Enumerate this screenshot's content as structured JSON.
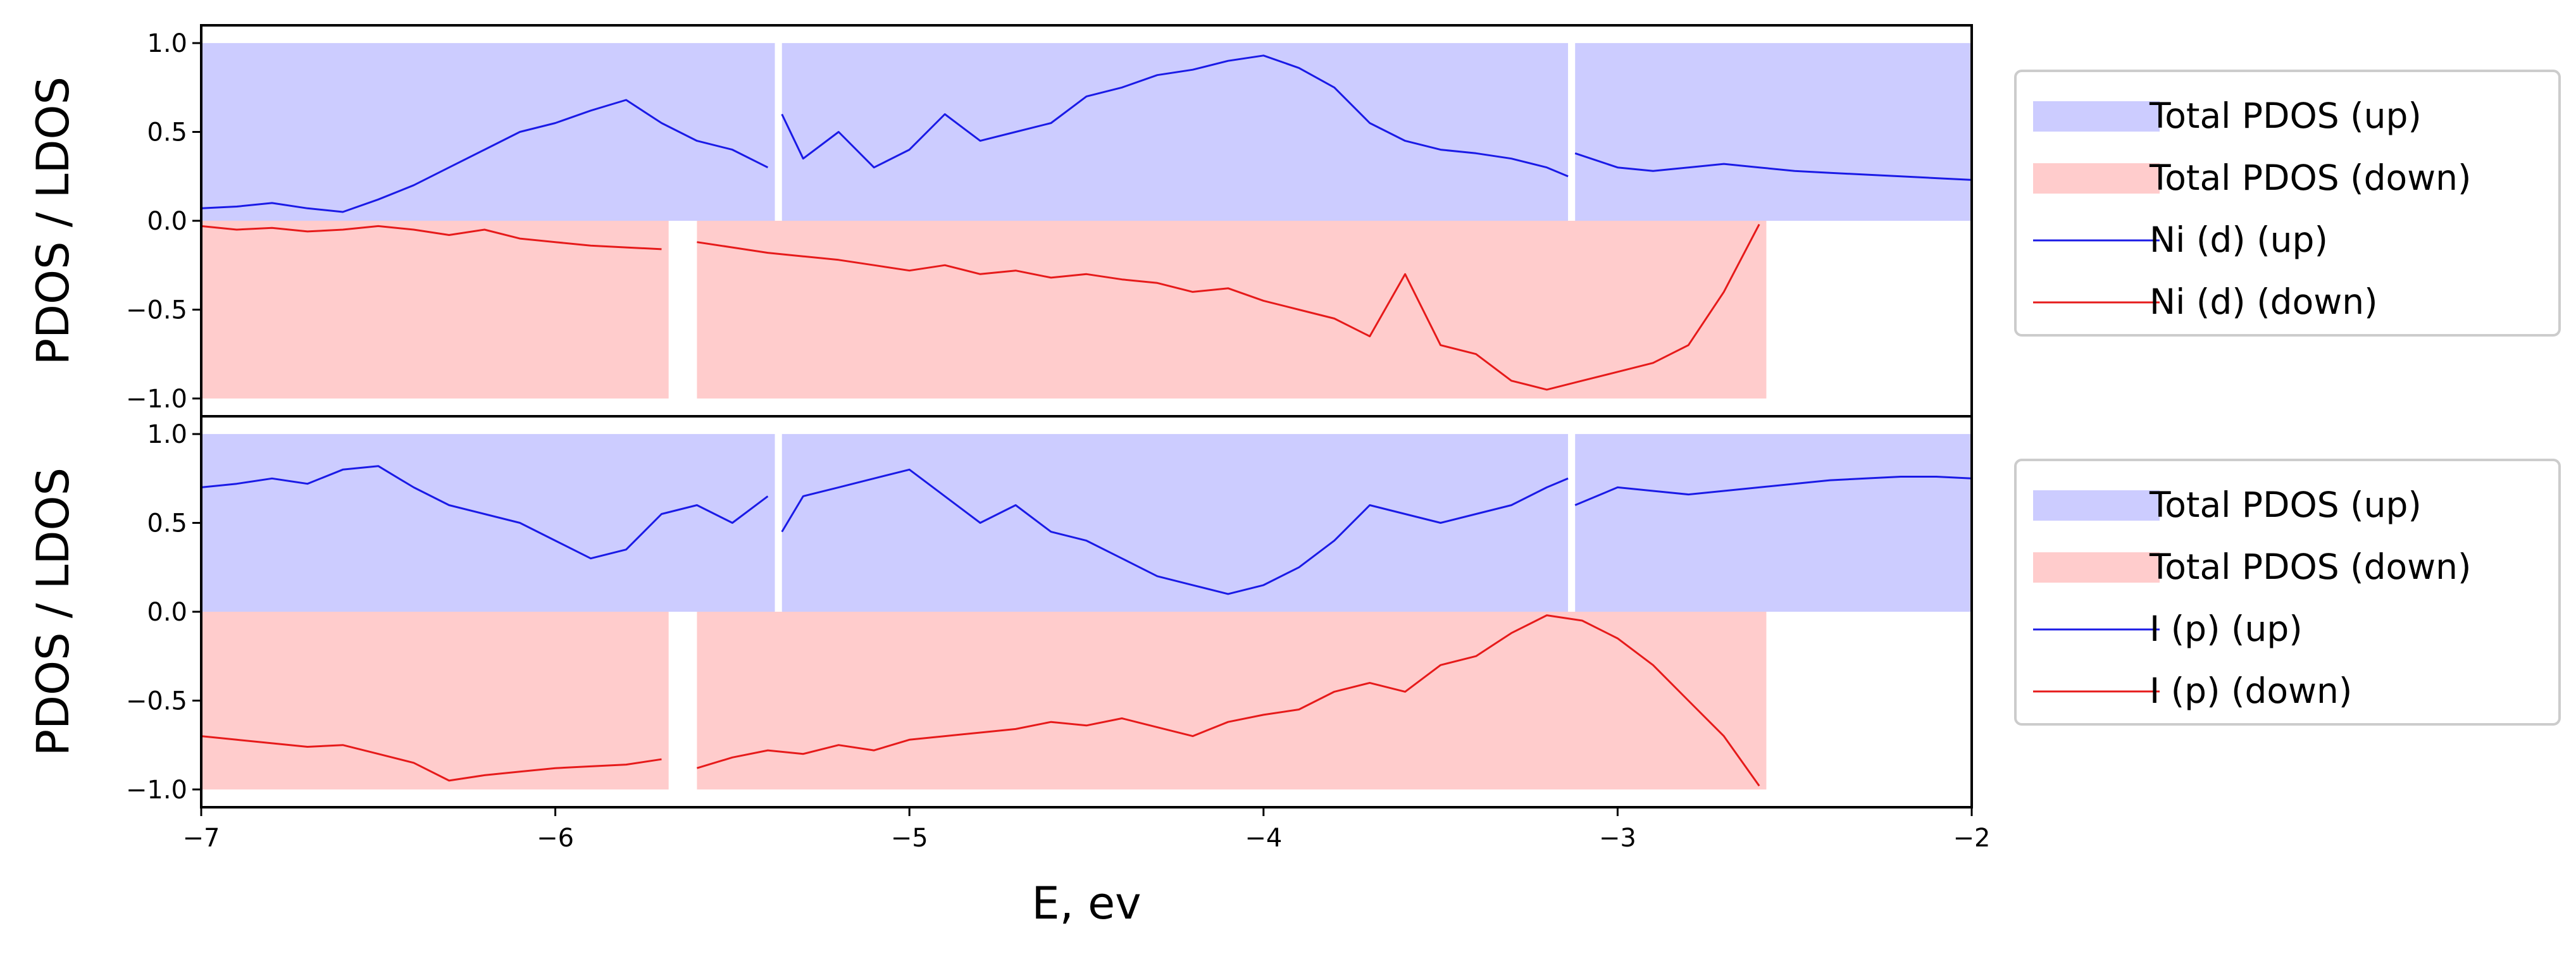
{
  "colors": {
    "up_fill": "#ccccff",
    "down_fill": "#ffcccc",
    "up_line": "#1a1ae6",
    "down_line": "#e61a1a",
    "frame": "#000000",
    "legend_border": "#cccccc"
  },
  "chart_data": [
    {
      "type": "area",
      "title": "",
      "xlabel": "",
      "ylabel": "PDOS / LDOS",
      "xlim": [
        -7,
        -2
      ],
      "ylim": [
        -1.1,
        1.1
      ],
      "yticks": [
        -1.0,
        -0.5,
        0.0,
        0.5,
        1.0
      ],
      "ytick_labels": [
        "−1.0",
        "−0.5",
        "0.0",
        "0.5",
        "1.0"
      ],
      "grid": false,
      "legend_position": "outside-right",
      "legend": [
        "Total PDOS (up)",
        "Total PDOS (down)",
        "Ni (d) (up)",
        "Ni (d) (down)"
      ],
      "series": [
        {
          "name": "Total PDOS (up)",
          "kind": "fill",
          "y": 1.0,
          "segments": [
            [
              -7.0,
              -5.38
            ],
            [
              -5.36,
              -3.14
            ],
            [
              -3.12,
              -2.0
            ]
          ]
        },
        {
          "name": "Total PDOS (down)",
          "kind": "fill",
          "y": -1.0,
          "segments": [
            [
              -7.0,
              -5.68
            ],
            [
              -5.6,
              -2.58
            ]
          ]
        },
        {
          "name": "Ni (d) (up)",
          "kind": "line",
          "segments": [
            {
              "x": [
                -7.0,
                -6.9,
                -6.8,
                -6.7,
                -6.6,
                -6.5,
                -6.4,
                -6.3,
                -6.2,
                -6.1,
                -6.0,
                -5.9,
                -5.8,
                -5.7,
                -5.6,
                -5.5,
                -5.4
              ],
              "y": [
                0.07,
                0.08,
                0.1,
                0.07,
                0.05,
                0.12,
                0.2,
                0.3,
                0.4,
                0.5,
                0.55,
                0.62,
                0.68,
                0.55,
                0.45,
                0.4,
                0.3
              ]
            },
            {
              "x": [
                -5.36,
                -5.3,
                -5.2,
                -5.1,
                -5.0,
                -4.9,
                -4.8,
                -4.7,
                -4.6,
                -4.5,
                -4.4,
                -4.3,
                -4.2,
                -4.1,
                -4.0,
                -3.9,
                -3.8,
                -3.7,
                -3.6,
                -3.5,
                -3.4,
                -3.3,
                -3.2,
                -3.14
              ],
              "y": [
                0.6,
                0.35,
                0.5,
                0.3,
                0.4,
                0.6,
                0.45,
                0.5,
                0.55,
                0.7,
                0.75,
                0.82,
                0.85,
                0.9,
                0.93,
                0.86,
                0.75,
                0.55,
                0.45,
                0.4,
                0.38,
                0.35,
                0.3,
                0.25
              ]
            },
            {
              "x": [
                -3.12,
                -3.0,
                -2.9,
                -2.8,
                -2.7,
                -2.6,
                -2.5,
                -2.4,
                -2.3,
                -2.2,
                -2.1,
                -2.0
              ],
              "y": [
                0.38,
                0.3,
                0.28,
                0.3,
                0.32,
                0.3,
                0.28,
                0.27,
                0.26,
                0.25,
                0.24,
                0.23
              ]
            }
          ]
        },
        {
          "name": "Ni (d) (down)",
          "kind": "line",
          "segments": [
            {
              "x": [
                -7.0,
                -6.9,
                -6.8,
                -6.7,
                -6.6,
                -6.5,
                -6.4,
                -6.3,
                -6.2,
                -6.1,
                -6.0,
                -5.9,
                -5.8,
                -5.7
              ],
              "y": [
                -0.03,
                -0.05,
                -0.04,
                -0.06,
                -0.05,
                -0.03,
                -0.05,
                -0.08,
                -0.05,
                -0.1,
                -0.12,
                -0.14,
                -0.15,
                -0.16
              ]
            },
            {
              "x": [
                -5.6,
                -5.5,
                -5.4,
                -5.3,
                -5.2,
                -5.1,
                -5.0,
                -4.9,
                -4.8,
                -4.7,
                -4.6,
                -4.5,
                -4.4,
                -4.3,
                -4.2,
                -4.1,
                -4.0,
                -3.9,
                -3.8,
                -3.7,
                -3.6,
                -3.5,
                -3.4,
                -3.3,
                -3.2,
                -3.1,
                -3.0,
                -2.9,
                -2.8,
                -2.7,
                -2.6
              ],
              "y": [
                -0.12,
                -0.15,
                -0.18,
                -0.2,
                -0.22,
                -0.25,
                -0.28,
                -0.25,
                -0.3,
                -0.28,
                -0.32,
                -0.3,
                -0.33,
                -0.35,
                -0.4,
                -0.38,
                -0.45,
                -0.5,
                -0.55,
                -0.65,
                -0.3,
                -0.7,
                -0.75,
                -0.9,
                -0.95,
                -0.9,
                -0.85,
                -0.8,
                -0.7,
                -0.4,
                -0.02
              ]
            }
          ]
        }
      ]
    },
    {
      "type": "area",
      "title": "",
      "xlabel": "E, ev",
      "ylabel": "PDOS / LDOS",
      "xlim": [
        -7,
        -2
      ],
      "ylim": [
        -1.1,
        1.1
      ],
      "xticks": [
        -7,
        -6,
        -5,
        -4,
        -3,
        -2
      ],
      "xtick_labels": [
        "−7",
        "−6",
        "−5",
        "−4",
        "−3",
        "−2"
      ],
      "yticks": [
        -1.0,
        -0.5,
        0.0,
        0.5,
        1.0
      ],
      "ytick_labels": [
        "−1.0",
        "−0.5",
        "0.0",
        "0.5",
        "1.0"
      ],
      "grid": false,
      "legend_position": "outside-right",
      "legend": [
        "Total PDOS (up)",
        "Total PDOS (down)",
        "I (p) (up)",
        "I (p) (down)"
      ],
      "series": [
        {
          "name": "Total PDOS (up)",
          "kind": "fill",
          "y": 1.0,
          "segments": [
            [
              -7.0,
              -5.38
            ],
            [
              -5.36,
              -3.14
            ],
            [
              -3.12,
              -2.0
            ]
          ]
        },
        {
          "name": "Total PDOS (down)",
          "kind": "fill",
          "y": -1.0,
          "segments": [
            [
              -7.0,
              -5.68
            ],
            [
              -5.6,
              -2.58
            ]
          ]
        },
        {
          "name": "I (p) (up)",
          "kind": "line",
          "segments": [
            {
              "x": [
                -7.0,
                -6.9,
                -6.8,
                -6.7,
                -6.6,
                -6.5,
                -6.4,
                -6.3,
                -6.2,
                -6.1,
                -6.0,
                -5.9,
                -5.8,
                -5.7,
                -5.6,
                -5.5,
                -5.4
              ],
              "y": [
                0.7,
                0.72,
                0.75,
                0.72,
                0.8,
                0.82,
                0.7,
                0.6,
                0.55,
                0.5,
                0.4,
                0.3,
                0.35,
                0.55,
                0.6,
                0.5,
                0.65
              ]
            },
            {
              "x": [
                -5.36,
                -5.3,
                -5.2,
                -5.1,
                -5.0,
                -4.9,
                -4.8,
                -4.7,
                -4.6,
                -4.5,
                -4.4,
                -4.3,
                -4.2,
                -4.1,
                -4.0,
                -3.9,
                -3.8,
                -3.7,
                -3.6,
                -3.5,
                -3.4,
                -3.3,
                -3.2,
                -3.14
              ],
              "y": [
                0.45,
                0.65,
                0.7,
                0.75,
                0.8,
                0.65,
                0.5,
                0.6,
                0.45,
                0.4,
                0.3,
                0.2,
                0.15,
                0.1,
                0.15,
                0.25,
                0.4,
                0.6,
                0.55,
                0.5,
                0.55,
                0.6,
                0.7,
                0.75
              ]
            },
            {
              "x": [
                -3.12,
                -3.0,
                -2.9,
                -2.8,
                -2.7,
                -2.6,
                -2.5,
                -2.4,
                -2.3,
                -2.2,
                -2.1,
                -2.0
              ],
              "y": [
                0.6,
                0.7,
                0.68,
                0.66,
                0.68,
                0.7,
                0.72,
                0.74,
                0.75,
                0.76,
                0.76,
                0.75
              ]
            }
          ]
        },
        {
          "name": "I (p) (down)",
          "kind": "line",
          "segments": [
            {
              "x": [
                -7.0,
                -6.9,
                -6.8,
                -6.7,
                -6.6,
                -6.5,
                -6.4,
                -6.3,
                -6.2,
                -6.1,
                -6.0,
                -5.9,
                -5.8,
                -5.7
              ],
              "y": [
                -0.7,
                -0.72,
                -0.74,
                -0.76,
                -0.75,
                -0.8,
                -0.85,
                -0.95,
                -0.92,
                -0.9,
                -0.88,
                -0.87,
                -0.86,
                -0.83
              ]
            },
            {
              "x": [
                -5.6,
                -5.5,
                -5.4,
                -5.3,
                -5.2,
                -5.1,
                -5.0,
                -4.9,
                -4.8,
                -4.7,
                -4.6,
                -4.5,
                -4.4,
                -4.3,
                -4.2,
                -4.1,
                -4.0,
                -3.9,
                -3.8,
                -3.7,
                -3.6,
                -3.5,
                -3.4,
                -3.3,
                -3.2,
                -3.1,
                -3.0,
                -2.9,
                -2.8,
                -2.7,
                -2.6
              ],
              "y": [
                -0.88,
                -0.82,
                -0.78,
                -0.8,
                -0.75,
                -0.78,
                -0.72,
                -0.7,
                -0.68,
                -0.66,
                -0.62,
                -0.64,
                -0.6,
                -0.65,
                -0.7,
                -0.62,
                -0.58,
                -0.55,
                -0.45,
                -0.4,
                -0.45,
                -0.3,
                -0.25,
                -0.12,
                -0.02,
                -0.05,
                -0.15,
                -0.3,
                -0.5,
                -0.7,
                -0.98
              ]
            }
          ]
        }
      ]
    }
  ]
}
